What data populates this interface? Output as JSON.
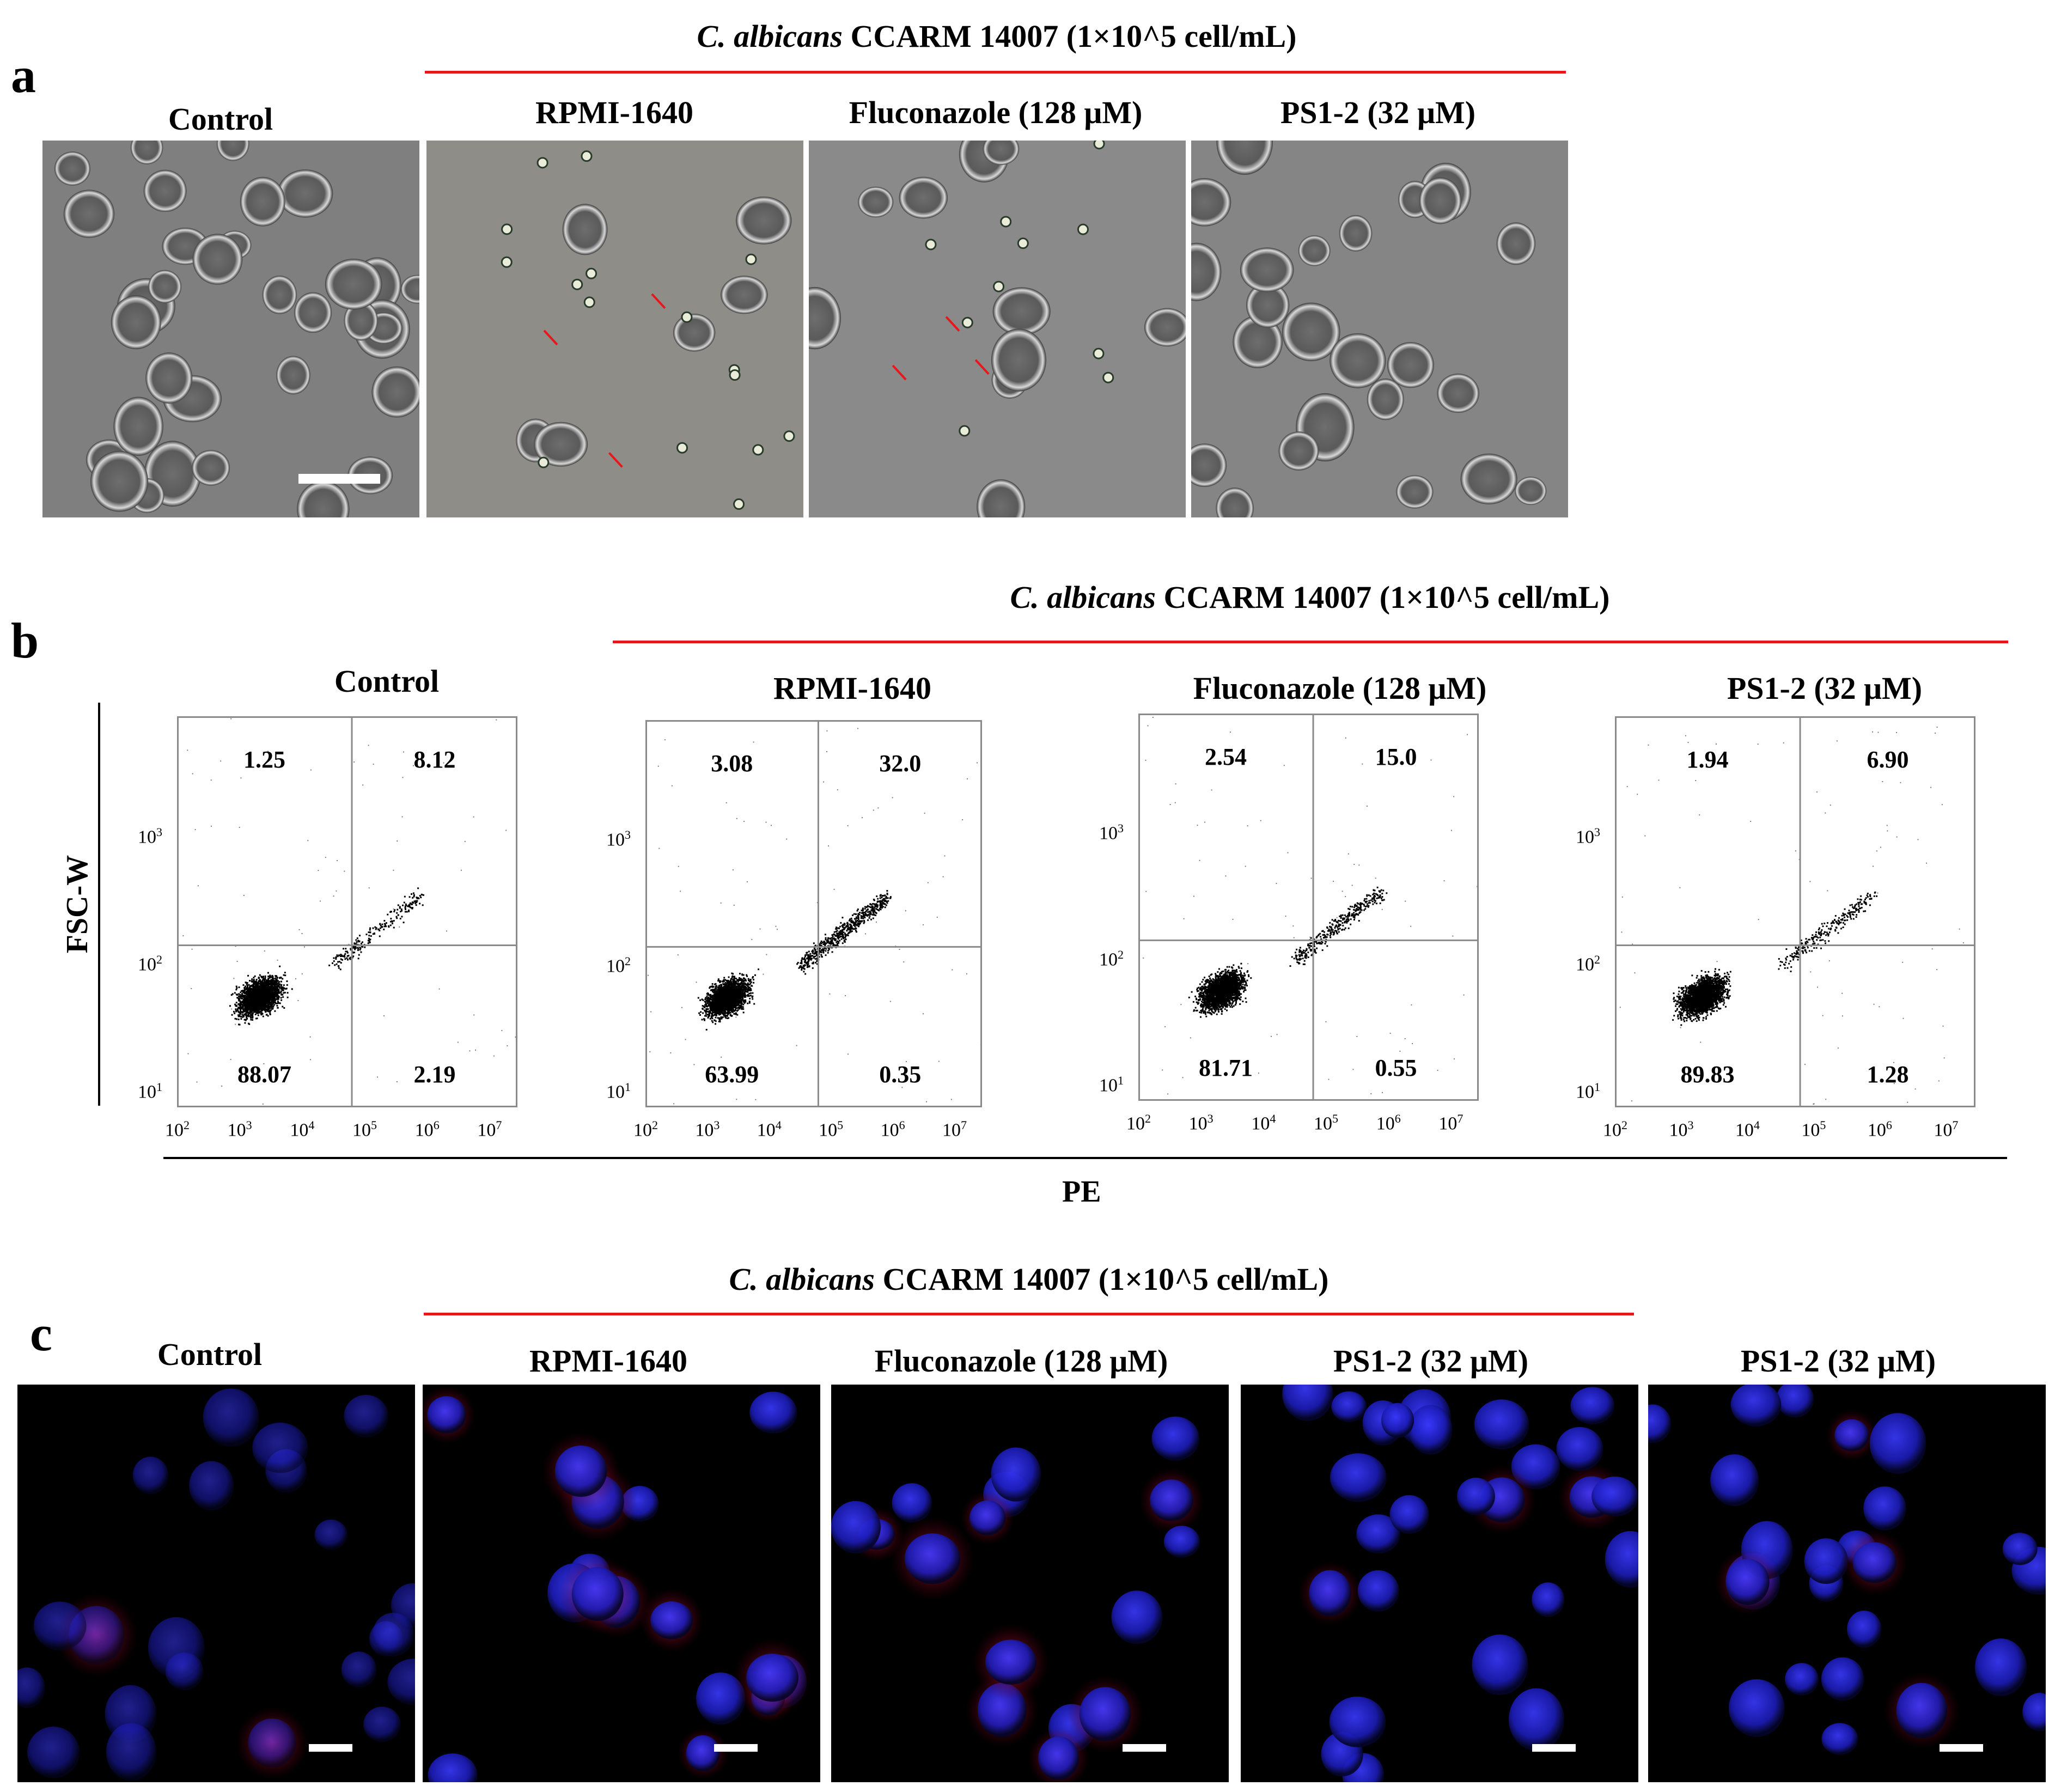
{
  "panel_a": {
    "letter": "a",
    "heading_species": "C. albicans",
    "heading_rest": " CCARM 14007 (1×10^5 cell/mL)",
    "labels": [
      "Control",
      "RPMI-1640",
      "Fluconazole (128 μM)",
      "PS1-2 (32 μM)"
    ]
  },
  "panel_b": {
    "letter": "b",
    "heading_species": "C. albicans",
    "heading_rest": " CCARM 14007 (1×10^5 cell/mL)",
    "ylabel": "FSC-W",
    "xlabel": "PE",
    "labels": [
      "Control",
      "RPMI-1640",
      "Fluconazole (128 μM)",
      "PS1-2 (32 μM)"
    ],
    "y_ticks": [
      {
        "base": "10",
        "exp": "3"
      },
      {
        "base": "10",
        "exp": "2"
      },
      {
        "base": "10",
        "exp": "1"
      }
    ],
    "x_ticks": [
      {
        "base": "10",
        "exp": "2"
      },
      {
        "base": "10",
        "exp": "3"
      },
      {
        "base": "10",
        "exp": "4"
      },
      {
        "base": "10",
        "exp": "5"
      },
      {
        "base": "10",
        "exp": "6"
      },
      {
        "base": "10",
        "exp": "7"
      }
    ]
  },
  "chart_data": [
    {
      "type": "scatter",
      "title": "Control",
      "xlabel": "PE",
      "ylabel": "FSC-W",
      "xscale": "log",
      "yscale": "log",
      "quadrants": {
        "upper_left": "1.25",
        "upper_right": "8.12",
        "lower_left": "88.07",
        "lower_right": "2.19"
      }
    },
    {
      "type": "scatter",
      "title": "RPMI-1640",
      "xlabel": "PE",
      "ylabel": "FSC-W",
      "xscale": "log",
      "yscale": "log",
      "quadrants": {
        "upper_left": "3.08",
        "upper_right": "32.0",
        "lower_left": "63.99",
        "lower_right": "0.35"
      }
    },
    {
      "type": "scatter",
      "title": "Fluconazole (128 μM)",
      "xlabel": "PE",
      "ylabel": "FSC-W",
      "xscale": "log",
      "yscale": "log",
      "quadrants": {
        "upper_left": "2.54",
        "upper_right": "15.0",
        "lower_left": "81.71",
        "lower_right": "0.55"
      }
    },
    {
      "type": "scatter",
      "title": "PS1-2 (32 μM)",
      "xlabel": "PE",
      "ylabel": "FSC-W",
      "xscale": "log",
      "yscale": "log",
      "quadrants": {
        "upper_left": "1.94",
        "upper_right": "6.90",
        "lower_left": "89.83",
        "lower_right": "1.28"
      }
    }
  ],
  "panel_c": {
    "letter": "c",
    "heading_species": "C. albicans",
    "heading_rest": " CCARM 14007 (1×10^5 cell/mL)",
    "labels": [
      "Control",
      "RPMI-1640",
      "Fluconazole (128 μM)",
      "PS1-2 (32 μM)",
      "PS1-2 (32 μM)"
    ]
  },
  "colors": {
    "accent_line": "#e8161b",
    "nucleus_blue": "#2a2ae0",
    "stain_red": "#c8163a",
    "phase_gray": "#8d8d8d"
  }
}
